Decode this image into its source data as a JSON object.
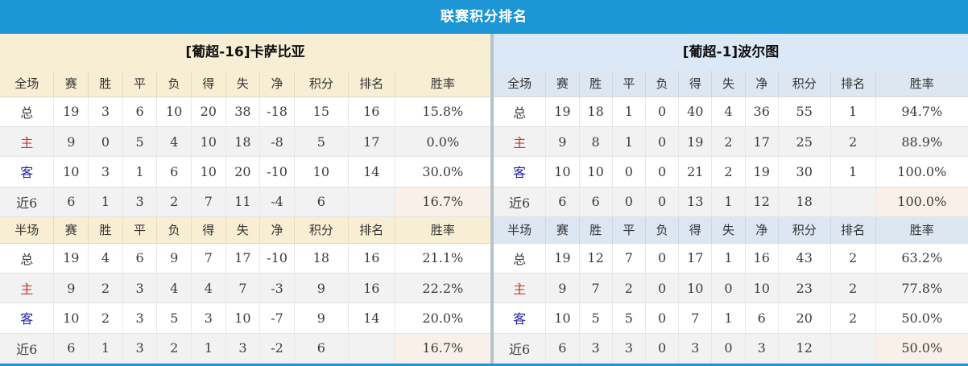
{
  "title": "联赛积分排名",
  "scopes": {
    "full": "全场",
    "half": "半场"
  },
  "columns": [
    "赛",
    "胜",
    "平",
    "负",
    "得",
    "失",
    "净",
    "积分",
    "排名",
    "胜率"
  ],
  "label_styles": {
    "总": "",
    "主": "home",
    "客": "away",
    "近6": ""
  },
  "colors": {
    "accent_blue": "#1C96D4",
    "home_panel_header": "#F8EED4",
    "away_panel_header": "#DBE8F5",
    "points_text": "#E8462C",
    "rank_text": "#4E86C4",
    "winrate_text": "#E8462C",
    "home_row_label": "#C43A30",
    "away_row_label": "#2323A8",
    "stripe_row": "#F2F2F2"
  },
  "teams": [
    {
      "name": "[葡超-16]卡萨比亚",
      "full_rows": [
        {
          "label": "总",
          "stats": [
            "19",
            "3",
            "6",
            "10",
            "20",
            "38",
            "-18"
          ],
          "points": "15",
          "rank": "16",
          "win_rate": "15.8%"
        },
        {
          "label": "主",
          "stats": [
            "9",
            "0",
            "5",
            "4",
            "10",
            "18",
            "-8"
          ],
          "points": "5",
          "rank": "17",
          "win_rate": "0.0%"
        },
        {
          "label": "客",
          "stats": [
            "10",
            "3",
            "1",
            "6",
            "10",
            "20",
            "-10"
          ],
          "points": "10",
          "rank": "14",
          "win_rate": "30.0%"
        },
        {
          "label": "近6",
          "stats": [
            "6",
            "1",
            "3",
            "2",
            "7",
            "11",
            "-4"
          ],
          "points": "6",
          "rank": "",
          "win_rate": "16.7%"
        }
      ],
      "half_rows": [
        {
          "label": "总",
          "stats": [
            "19",
            "4",
            "6",
            "9",
            "7",
            "17",
            "-10"
          ],
          "points": "18",
          "rank": "16",
          "win_rate": "21.1%"
        },
        {
          "label": "主",
          "stats": [
            "9",
            "2",
            "3",
            "4",
            "4",
            "7",
            "-3"
          ],
          "points": "9",
          "rank": "16",
          "win_rate": "22.2%"
        },
        {
          "label": "客",
          "stats": [
            "10",
            "2",
            "3",
            "5",
            "3",
            "10",
            "-7"
          ],
          "points": "9",
          "rank": "14",
          "win_rate": "20.0%"
        },
        {
          "label": "近6",
          "stats": [
            "6",
            "1",
            "3",
            "2",
            "1",
            "3",
            "-2"
          ],
          "points": "6",
          "rank": "",
          "win_rate": "16.7%"
        }
      ]
    },
    {
      "name": "[葡超-1]波尔图",
      "full_rows": [
        {
          "label": "总",
          "stats": [
            "19",
            "18",
            "1",
            "0",
            "40",
            "4",
            "36"
          ],
          "points": "55",
          "rank": "1",
          "win_rate": "94.7%"
        },
        {
          "label": "主",
          "stats": [
            "9",
            "8",
            "1",
            "0",
            "19",
            "2",
            "17"
          ],
          "points": "25",
          "rank": "2",
          "win_rate": "88.9%"
        },
        {
          "label": "客",
          "stats": [
            "10",
            "10",
            "0",
            "0",
            "21",
            "2",
            "19"
          ],
          "points": "30",
          "rank": "1",
          "win_rate": "100.0%"
        },
        {
          "label": "近6",
          "stats": [
            "6",
            "6",
            "0",
            "0",
            "13",
            "1",
            "12"
          ],
          "points": "18",
          "rank": "",
          "win_rate": "100.0%"
        }
      ],
      "half_rows": [
        {
          "label": "总",
          "stats": [
            "19",
            "12",
            "7",
            "0",
            "17",
            "1",
            "16"
          ],
          "points": "43",
          "rank": "2",
          "win_rate": "63.2%"
        },
        {
          "label": "主",
          "stats": [
            "9",
            "7",
            "2",
            "0",
            "10",
            "0",
            "10"
          ],
          "points": "23",
          "rank": "2",
          "win_rate": "77.8%"
        },
        {
          "label": "客",
          "stats": [
            "10",
            "5",
            "5",
            "0",
            "7",
            "1",
            "6"
          ],
          "points": "20",
          "rank": "2",
          "win_rate": "50.0%"
        },
        {
          "label": "近6",
          "stats": [
            "6",
            "3",
            "3",
            "0",
            "3",
            "0",
            "3"
          ],
          "points": "12",
          "rank": "",
          "win_rate": "50.0%"
        }
      ]
    }
  ]
}
